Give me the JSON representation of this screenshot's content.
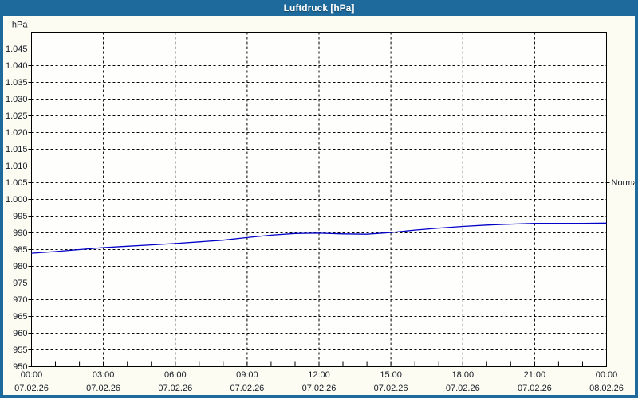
{
  "window": {
    "title": "Luftdruck [hPa]"
  },
  "colors": {
    "titlebar": "#1e6a9c",
    "window_border": "#1e6a9c",
    "title_text": "#ffffff",
    "content_bg": "#fcfcf2",
    "plot_bg": "#fefefc",
    "grid": "#000000",
    "axis": "#000000",
    "axis_text": "#161c26",
    "line": "#0000c8"
  },
  "chart_data": {
    "type": "line",
    "title": "Luftdruck [hPa]",
    "unit_label": "hPa",
    "ylim": [
      950,
      1050
    ],
    "ytick_step": 5,
    "grid": "dashed",
    "legend": "none",
    "ytick_labels": [
      "950",
      "955",
      "960",
      "965",
      "970",
      "975",
      "980",
      "985",
      "990",
      "995",
      "1.000",
      "1.005",
      "1.010",
      "1.015",
      "1.020",
      "1.025",
      "1.030",
      "1.035",
      "1.040",
      "1.045"
    ],
    "x_minor_tick_hours": 1,
    "x_ticks": [
      {
        "hour": 0,
        "time": "00:00",
        "date": "07.02.26"
      },
      {
        "hour": 3,
        "time": "03:00",
        "date": "07.02.26"
      },
      {
        "hour": 6,
        "time": "06:00",
        "date": "07.02.26"
      },
      {
        "hour": 9,
        "time": "09:00",
        "date": "07.02.26"
      },
      {
        "hour": 12,
        "time": "12:00",
        "date": "07.02.26"
      },
      {
        "hour": 15,
        "time": "15:00",
        "date": "07.02.26"
      },
      {
        "hour": 18,
        "time": "18:00",
        "date": "07.02.26"
      },
      {
        "hour": 21,
        "time": "21:00",
        "date": "07.02.26"
      },
      {
        "hour": 24,
        "time": "00:00",
        "date": "08.02.26"
      }
    ],
    "annotations": [
      {
        "label": "Normal",
        "value": 1005,
        "side": "right"
      }
    ],
    "series": [
      {
        "name": "Luftdruck",
        "color": "#0000c8",
        "x_hours": [
          0,
          1,
          2,
          3,
          4,
          5,
          6,
          7,
          8,
          9,
          10,
          11,
          12,
          13,
          14,
          15,
          16,
          17,
          18,
          19,
          20,
          21,
          22,
          23,
          24
        ],
        "values": [
          983.9,
          984.4,
          985.0,
          985.6,
          986.0,
          986.4,
          986.8,
          987.3,
          987.8,
          988.6,
          989.3,
          989.8,
          989.9,
          989.7,
          989.6,
          990.1,
          990.8,
          991.4,
          991.9,
          992.3,
          992.6,
          992.8,
          992.8,
          992.8,
          992.9
        ]
      }
    ]
  }
}
